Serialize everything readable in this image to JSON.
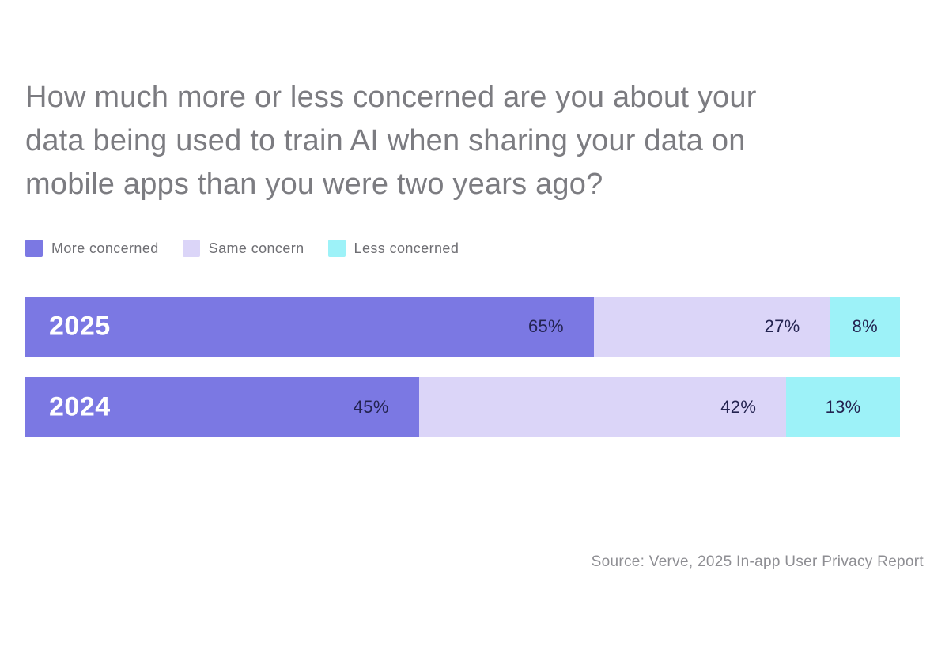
{
  "chart_data": {
    "type": "bar",
    "orientation": "horizontal",
    "stacked": true,
    "title": "How much more or less concerned are you about your\ndata being used to train AI when sharing your data on\nmobile apps than you were two years ago?",
    "categories": [
      "2025",
      "2024"
    ],
    "series": [
      {
        "name": "More concerned",
        "color": "#7b78e3",
        "values": [
          65,
          45
        ]
      },
      {
        "name": "Same concern",
        "color": "#dbd5f8",
        "values": [
          27,
          42
        ]
      },
      {
        "name": "Less concerned",
        "color": "#9df2f8",
        "values": [
          8,
          13
        ]
      }
    ],
    "value_suffix": "%",
    "xlim": [
      0,
      100
    ],
    "legend_position": "top-left",
    "grid": false,
    "source": "Source: Verve, 2025 In-app User Privacy Report"
  },
  "colors": {
    "background": "#ffffff",
    "title_text": "#7c7c81",
    "legend_text": "#6e6e73",
    "value_text": "#232350",
    "year_text": "#ffffff",
    "source_text": "#8e8e93"
  }
}
